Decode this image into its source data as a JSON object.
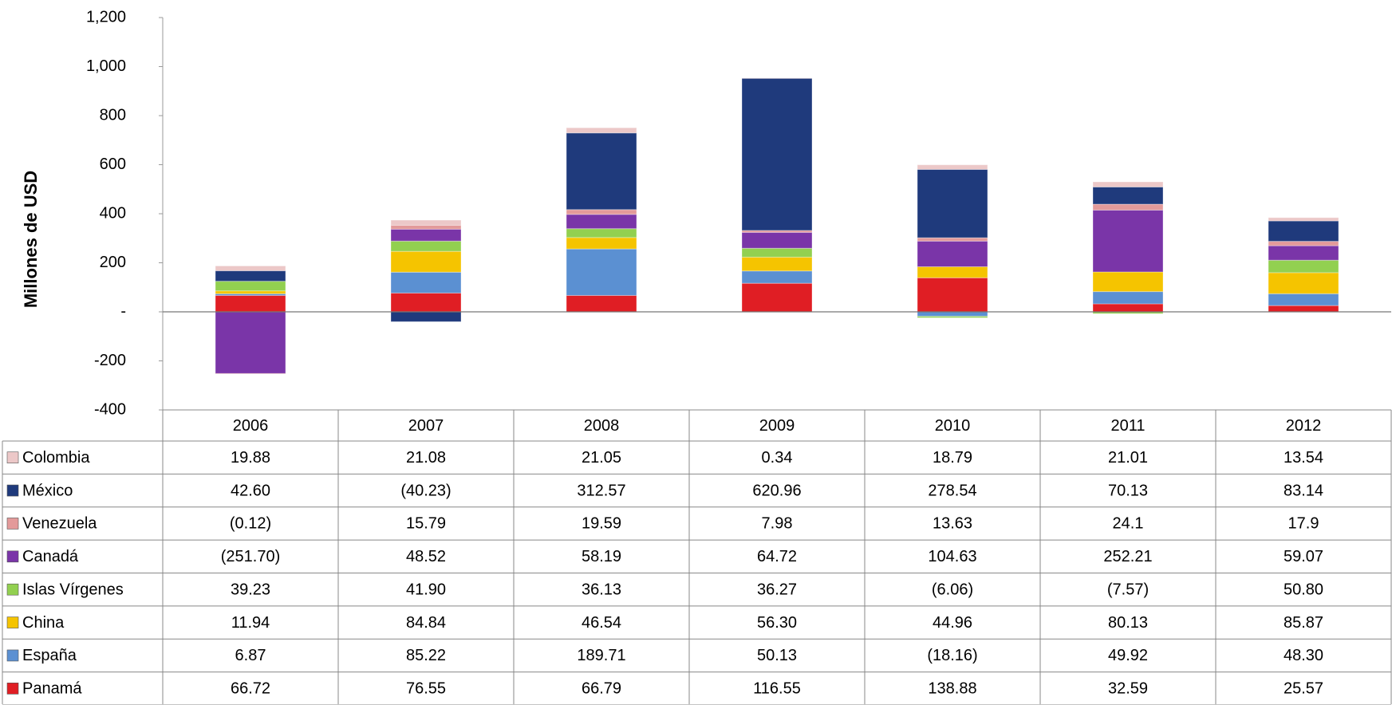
{
  "chart_data": {
    "type": "stacked-bar",
    "y_label": "Millones de USD",
    "categories": [
      "2006",
      "2007",
      "2008",
      "2009",
      "2010",
      "2011",
      "2012"
    ],
    "ylim": [
      -400,
      1200
    ],
    "yticks": [
      {
        "value": 1200,
        "label": "1,200"
      },
      {
        "value": 1000,
        "label": "1,000"
      },
      800,
      600,
      400,
      200,
      {
        "value": 0,
        "label": "-"
      },
      -200,
      -400
    ],
    "grid": false,
    "series": [
      {
        "name": "Panamá",
        "color": "#e01e24",
        "values": [
          66.72,
          76.55,
          66.79,
          116.55,
          138.88,
          32.59,
          25.57
        ],
        "value_labels": [
          "66.72",
          "76.55",
          "66.79",
          "116.55",
          "138.88",
          "32.59",
          "25.57"
        ]
      },
      {
        "name": "España",
        "color": "#5b90d2",
        "values": [
          6.87,
          85.22,
          189.71,
          50.13,
          -18.16,
          49.92,
          48.3
        ],
        "value_labels": [
          "6.87",
          "85.22",
          "189.71",
          "50.13",
          "(18.16)",
          "49.92",
          "48.30"
        ]
      },
      {
        "name": "China",
        "color": "#f5c400",
        "values": [
          11.94,
          84.84,
          46.54,
          56.3,
          44.96,
          80.13,
          85.87
        ],
        "value_labels": [
          "11.94",
          "84.84",
          "46.54",
          "56.30",
          "44.96",
          "80.13",
          "85.87"
        ]
      },
      {
        "name": "Islas Vírgenes",
        "color": "#92d050",
        "values": [
          39.23,
          41.9,
          36.13,
          36.27,
          -6.06,
          -7.57,
          50.8
        ],
        "value_labels": [
          "39.23",
          "41.90",
          "36.13",
          "36.27",
          "(6.06)",
          "(7.57)",
          "50.80"
        ]
      },
      {
        "name": "Canadá",
        "color": "#7a35a8",
        "values": [
          -251.7,
          48.52,
          58.19,
          64.72,
          104.63,
          252.21,
          59.07
        ],
        "value_labels": [
          "(251.70)",
          "48.52",
          "58.19",
          "64.72",
          "104.63",
          "252.21",
          "59.07"
        ]
      },
      {
        "name": "Venezuela",
        "color": "#e39a9a",
        "values": [
          -0.12,
          15.79,
          19.59,
          7.98,
          13.63,
          24.1,
          17.9
        ],
        "value_labels": [
          "(0.12)",
          "15.79",
          "19.59",
          "7.98",
          "13.63",
          "24.1",
          "17.9"
        ]
      },
      {
        "name": "México",
        "color": "#1f3a7c",
        "values": [
          42.6,
          -40.23,
          312.57,
          620.96,
          278.54,
          70.13,
          83.14
        ],
        "value_labels": [
          "42.60",
          "(40.23)",
          "312.57",
          "620.96",
          "278.54",
          "70.13",
          "83.14"
        ]
      },
      {
        "name": "Colombia",
        "color": "#ecc8c8",
        "values": [
          19.88,
          21.08,
          21.05,
          0.34,
          18.79,
          21.01,
          13.54
        ],
        "value_labels": [
          "19.88",
          "21.08",
          "21.05",
          "0.34",
          "18.79",
          "21.01",
          "13.54"
        ]
      }
    ]
  }
}
